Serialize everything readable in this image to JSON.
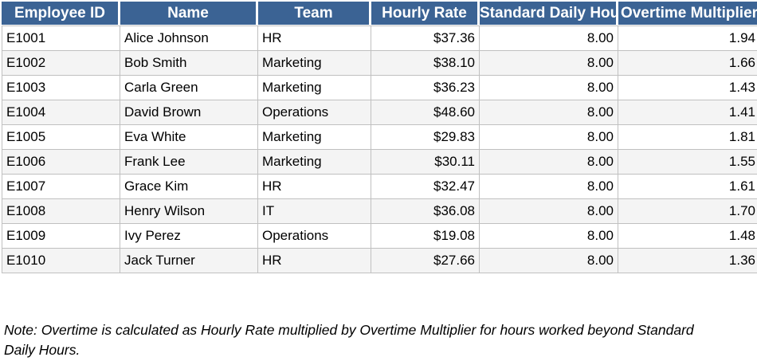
{
  "table": {
    "columns": [
      {
        "key": "employee-id",
        "label": "Employee ID",
        "align": "left"
      },
      {
        "key": "name",
        "label": "Name",
        "align": "left"
      },
      {
        "key": "team",
        "label": "Team",
        "align": "left"
      },
      {
        "key": "hourly-rate",
        "label": "Hourly Rate",
        "align": "right"
      },
      {
        "key": "standard-daily-hours",
        "label": "Standard Daily Hours",
        "align": "right"
      },
      {
        "key": "overtime-multiplier",
        "label": "Overtime Multiplier",
        "align": "right"
      }
    ],
    "rows": [
      [
        "E1001",
        "Alice Johnson",
        "HR",
        "$37.36",
        "8.00",
        "1.94"
      ],
      [
        "E1002",
        "Bob Smith",
        "Marketing",
        "$38.10",
        "8.00",
        "1.66"
      ],
      [
        "E1003",
        "Carla Green",
        "Marketing",
        "$36.23",
        "8.00",
        "1.43"
      ],
      [
        "E1004",
        "David Brown",
        "Operations",
        "$48.60",
        "8.00",
        "1.41"
      ],
      [
        "E1005",
        "Eva White",
        "Marketing",
        "$29.83",
        "8.00",
        "1.81"
      ],
      [
        "E1006",
        "Frank Lee",
        "Marketing",
        "$30.11",
        "8.00",
        "1.55"
      ],
      [
        "E1007",
        "Grace Kim",
        "HR",
        "$32.47",
        "8.00",
        "1.61"
      ],
      [
        "E1008",
        "Henry Wilson",
        "IT",
        "$36.08",
        "8.00",
        "1.70"
      ],
      [
        "E1009",
        "Ivy Perez",
        "Operations",
        "$19.08",
        "8.00",
        "1.48"
      ],
      [
        "E1010",
        "Jack Turner",
        "HR",
        "$27.66",
        "8.00",
        "1.36"
      ]
    ]
  },
  "note": {
    "text": "Note: Overtime is calculated as Hourly Rate multiplied by Overtime Multiplier for hours worked beyond Standard Daily Hours."
  },
  "colors": {
    "header_bg": "#3B6394",
    "header_text": "#FFFFFF",
    "row_alt_bg": "#F4F4F4",
    "grid": "#C0C0C0"
  }
}
